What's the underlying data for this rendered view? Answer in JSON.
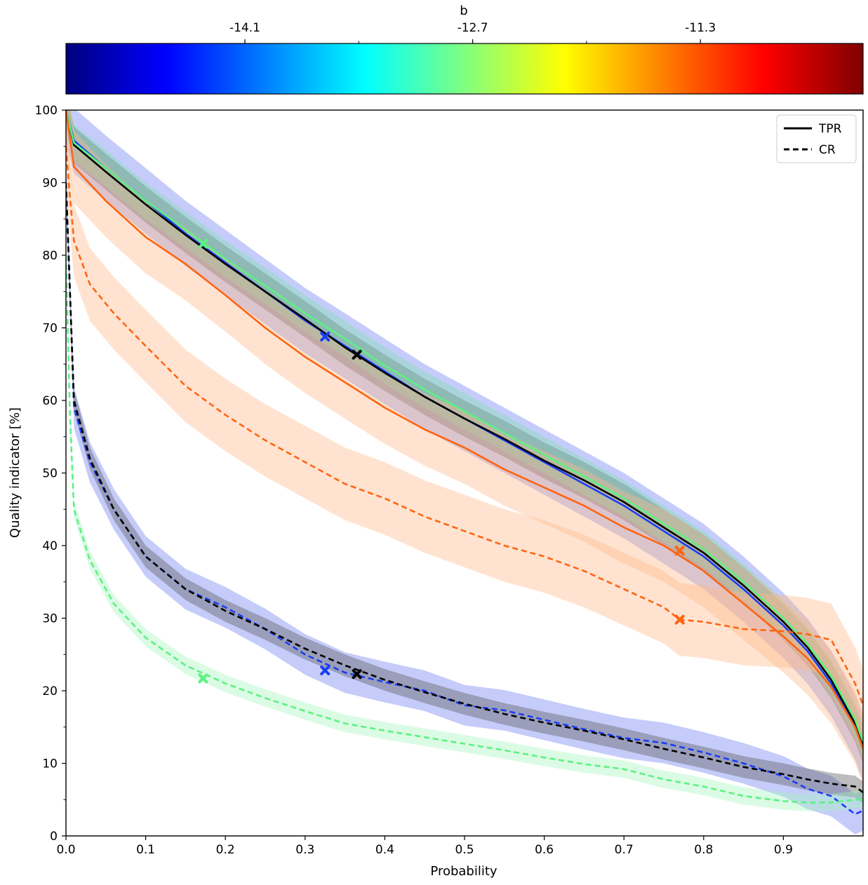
{
  "chart_data": {
    "type": "line",
    "xlabel": "Probability",
    "ylabel": "Quality indicator [%]",
    "xlim": [
      0.0,
      1.0
    ],
    "ylim": [
      0,
      100
    ],
    "x_ticks": [
      0.0,
      0.1,
      0.2,
      0.3,
      0.4,
      0.5,
      0.6,
      0.7,
      0.8,
      0.9
    ],
    "x_tick_labels": [
      "0.0",
      "0.1",
      "0.2",
      "0.3",
      "0.4",
      "0.5",
      "0.6",
      "0.7",
      "0.8",
      "0.9"
    ],
    "y_ticks": [
      0,
      10,
      20,
      30,
      40,
      50,
      60,
      70,
      80,
      90,
      100
    ],
    "y_tick_labels": [
      "0",
      "10",
      "20",
      "30",
      "40",
      "50",
      "60",
      "70",
      "80",
      "90",
      "100"
    ],
    "legend": {
      "position": "top-right",
      "entries": [
        {
          "label": "TPR",
          "style": "solid"
        },
        {
          "label": "CR",
          "style": "dashed"
        }
      ]
    },
    "colorbar": {
      "label": "b",
      "colormap": "jet",
      "range": [
        -15.2,
        -10.3
      ],
      "tick_values": [
        -14.1,
        -12.7,
        -11.3
      ],
      "tick_labels": [
        "-14.1",
        "-12.7",
        "-11.3"
      ],
      "minor_tick_values": [
        -13.4,
        -12.0
      ]
    },
    "series": [
      {
        "name": "TPR b=-14.1",
        "metric": "TPR",
        "color": "#1a3cf5",
        "band_color": "#6e7ff2",
        "x": [
          0.0,
          0.01,
          0.05,
          0.1,
          0.15,
          0.2,
          0.25,
          0.3,
          0.35,
          0.4,
          0.45,
          0.5,
          0.55,
          0.6,
          0.65,
          0.7,
          0.75,
          0.8,
          0.85,
          0.9,
          0.93,
          0.96,
          0.99,
          1.0
        ],
        "y": [
          100,
          95.8,
          92,
          87.5,
          83,
          79,
          75,
          71,
          67.5,
          64,
          60.5,
          57.5,
          54.5,
          51.5,
          48.5,
          45.5,
          42,
          38.5,
          34,
          29,
          25.5,
          21,
          15,
          12
        ],
        "band": [
          4.5,
          4.5,
          4.5,
          4.5,
          4.5,
          4.5,
          4.5,
          4.5,
          4.5,
          4.5,
          4.5,
          4.5,
          4.5,
          4.5,
          4.5,
          4.5,
          4.5,
          4.5,
          4.5,
          4.5,
          4.5,
          4.5,
          4.5,
          4.5
        ],
        "marker": {
          "x": 0.325,
          "y": 68.8
        }
      },
      {
        "name": "TPR b=-12.7",
        "metric": "TPR",
        "color": "#000000",
        "band_color": "#5a5a5a",
        "x": [
          0.0,
          0.01,
          0.05,
          0.1,
          0.15,
          0.2,
          0.25,
          0.3,
          0.35,
          0.4,
          0.45,
          0.5,
          0.55,
          0.6,
          0.65,
          0.7,
          0.75,
          0.8,
          0.85,
          0.9,
          0.93,
          0.96,
          0.99,
          1.0
        ],
        "y": [
          100,
          95.2,
          91.5,
          87,
          82.8,
          78.8,
          75,
          71.2,
          67.3,
          63.8,
          60.5,
          57.5,
          54.7,
          51.7,
          49,
          46,
          42.5,
          39,
          34.5,
          29.5,
          26,
          21.5,
          15.5,
          12.5
        ],
        "band": [
          2.5,
          2.5,
          2.5,
          2.5,
          2.5,
          2.5,
          2.5,
          2.5,
          2.5,
          2.5,
          2.5,
          2.5,
          2.5,
          2.5,
          2.5,
          2.5,
          2.5,
          2.5,
          2.5,
          2.5,
          2.5,
          2.5,
          2.5,
          2.5
        ],
        "marker": {
          "x": 0.365,
          "y": 66.3
        }
      },
      {
        "name": "TPR b=-13.4",
        "metric": "TPR",
        "color": "#5cf280",
        "band_color": "#7fe0b0",
        "x": [
          0.0,
          0.01,
          0.05,
          0.1,
          0.15,
          0.2,
          0.25,
          0.3,
          0.35,
          0.4,
          0.45,
          0.5,
          0.55,
          0.6,
          0.65,
          0.7,
          0.75,
          0.8,
          0.85,
          0.9,
          0.93,
          0.96,
          0.99,
          1.0
        ],
        "y": [
          100,
          95.5,
          92,
          87.5,
          83.5,
          79.5,
          75.8,
          72,
          68.5,
          64.8,
          61.5,
          58.5,
          55.5,
          52.5,
          49.5,
          46.5,
          43,
          39.5,
          35,
          30,
          26.5,
          22,
          16,
          13
        ],
        "band": [
          2.5,
          2.5,
          2.5,
          2.5,
          2.5,
          2.5,
          2.5,
          2.5,
          2.5,
          2.5,
          2.5,
          2.5,
          2.5,
          2.5,
          2.5,
          2.5,
          2.5,
          2.5,
          2.5,
          2.5,
          2.5,
          2.5,
          2.5,
          2.5
        ],
        "marker": {
          "x": 0.172,
          "y": 81.6
        }
      },
      {
        "name": "TPR b=-11.3",
        "metric": "TPR",
        "color": "#ff6410",
        "band_color": "#ffb98a",
        "x": [
          0.0,
          0.01,
          0.05,
          0.1,
          0.15,
          0.2,
          0.25,
          0.3,
          0.35,
          0.4,
          0.45,
          0.5,
          0.55,
          0.6,
          0.65,
          0.7,
          0.75,
          0.8,
          0.85,
          0.9,
          0.93,
          0.96,
          0.99,
          1.0
        ],
        "y": [
          100,
          92.2,
          87.5,
          82.5,
          78.8,
          74.5,
          70,
          66,
          62.5,
          59,
          56,
          53.5,
          50.5,
          48,
          45.5,
          42.5,
          40,
          36.5,
          32,
          27.5,
          24.5,
          20.5,
          15,
          12
        ],
        "band": [
          5,
          5,
          5,
          5,
          5,
          5,
          5,
          5,
          5,
          5,
          5,
          5,
          5,
          5,
          5,
          5,
          5,
          5,
          5,
          5,
          5,
          5,
          5,
          5
        ],
        "marker": {
          "x": 0.77,
          "y": 39.3
        }
      },
      {
        "name": "CR b=-14.1",
        "metric": "CR",
        "color": "#1a3cf5",
        "band_color": "#6e7ff2",
        "x": [
          0.0,
          0.005,
          0.01,
          0.03,
          0.06,
          0.1,
          0.15,
          0.2,
          0.25,
          0.3,
          0.35,
          0.4,
          0.45,
          0.5,
          0.55,
          0.6,
          0.65,
          0.7,
          0.75,
          0.8,
          0.85,
          0.9,
          0.93,
          0.96,
          0.99,
          1.0
        ],
        "y": [
          90,
          75,
          59,
          51.5,
          45,
          38.5,
          34,
          31.5,
          28.5,
          25,
          22.5,
          21.2,
          20,
          18,
          17.3,
          16,
          14.7,
          13.5,
          12.8,
          11.5,
          10,
          8.2,
          6.5,
          5.5,
          3,
          3.5
        ],
        "band": [
          2.8,
          2.8,
          2.8,
          2.8,
          2.8,
          2.8,
          2.8,
          2.8,
          2.8,
          2.8,
          2.8,
          2.8,
          2.8,
          2.8,
          2.8,
          2.8,
          2.8,
          2.8,
          2.8,
          2.8,
          2.8,
          2.8,
          2.8,
          2.8,
          2.8,
          2.8
        ],
        "marker": {
          "x": 0.325,
          "y": 22.8
        }
      },
      {
        "name": "CR b=-12.7",
        "metric": "CR",
        "color": "#000000",
        "band_color": "#5a5a5a",
        "x": [
          0.0,
          0.005,
          0.01,
          0.03,
          0.06,
          0.1,
          0.15,
          0.2,
          0.25,
          0.3,
          0.35,
          0.4,
          0.45,
          0.5,
          0.55,
          0.6,
          0.65,
          0.7,
          0.75,
          0.8,
          0.85,
          0.9,
          0.93,
          0.96,
          0.99,
          1.0
        ],
        "y": [
          90,
          75,
          60,
          52,
          45,
          38.5,
          34,
          31,
          28.5,
          25.8,
          23.5,
          21.5,
          19.8,
          18.2,
          16.8,
          15.6,
          14.5,
          13.3,
          12,
          10.8,
          9.5,
          8.5,
          7.8,
          7.2,
          6.8,
          6
        ],
        "band": [
          1.5,
          1.5,
          1.5,
          1.5,
          1.5,
          1.5,
          1.5,
          1.5,
          1.5,
          1.5,
          1.5,
          1.5,
          1.5,
          1.5,
          1.5,
          1.5,
          1.5,
          1.5,
          1.5,
          1.5,
          1.5,
          1.5,
          1.5,
          1.5,
          1.5,
          1.5
        ],
        "marker": {
          "x": 0.365,
          "y": 22.3
        }
      },
      {
        "name": "CR b=-13.4",
        "metric": "CR",
        "color": "#5cf280",
        "band_color": "#a6f5bd",
        "x": [
          0.0,
          0.005,
          0.01,
          0.03,
          0.06,
          0.1,
          0.15,
          0.2,
          0.25,
          0.3,
          0.35,
          0.4,
          0.45,
          0.5,
          0.55,
          0.6,
          0.65,
          0.7,
          0.75,
          0.8,
          0.85,
          0.9,
          0.93,
          0.96,
          0.99,
          1.0
        ],
        "y": [
          80,
          58,
          45,
          38,
          32,
          27.3,
          23.5,
          21,
          19,
          17.2,
          15.5,
          14.5,
          13.6,
          12.7,
          11.8,
          10.8,
          9.9,
          9.2,
          7.8,
          6.8,
          5.5,
          4.8,
          4.6,
          4.6,
          5,
          5
        ],
        "band": [
          1.2,
          1.2,
          1.2,
          1.2,
          1.2,
          1.2,
          1.2,
          1.2,
          1.2,
          1.2,
          1.2,
          1.2,
          1.2,
          1.2,
          1.2,
          1.2,
          1.2,
          1.2,
          1.2,
          1.2,
          1.2,
          1.2,
          1.2,
          1.2,
          1.2,
          1.2
        ],
        "marker": {
          "x": 0.172,
          "y": 21.7
        }
      },
      {
        "name": "CR b=-11.3",
        "metric": "CR",
        "color": "#ff6410",
        "band_color": "#ffb98a",
        "x": [
          0.0,
          0.005,
          0.01,
          0.03,
          0.06,
          0.1,
          0.15,
          0.2,
          0.25,
          0.3,
          0.35,
          0.4,
          0.45,
          0.5,
          0.55,
          0.6,
          0.65,
          0.7,
          0.75,
          0.77,
          0.8,
          0.85,
          0.9,
          0.93,
          0.96,
          0.99,
          1.0
        ],
        "y": [
          95,
          88,
          82,
          76,
          72,
          67.5,
          62,
          58,
          54.5,
          51.5,
          48.5,
          46.5,
          44,
          42,
          40,
          38.5,
          36.5,
          34,
          31.5,
          29.8,
          29.5,
          28.5,
          28.2,
          27.8,
          27,
          21,
          18
        ],
        "band": [
          5,
          5,
          5,
          5,
          5,
          5,
          5,
          5,
          5,
          5,
          5,
          5,
          5,
          5,
          5,
          5,
          5,
          5,
          5,
          5,
          5,
          5,
          5,
          5,
          5,
          5,
          5
        ],
        "marker": {
          "x": 0.77,
          "y": 29.8
        }
      }
    ]
  }
}
